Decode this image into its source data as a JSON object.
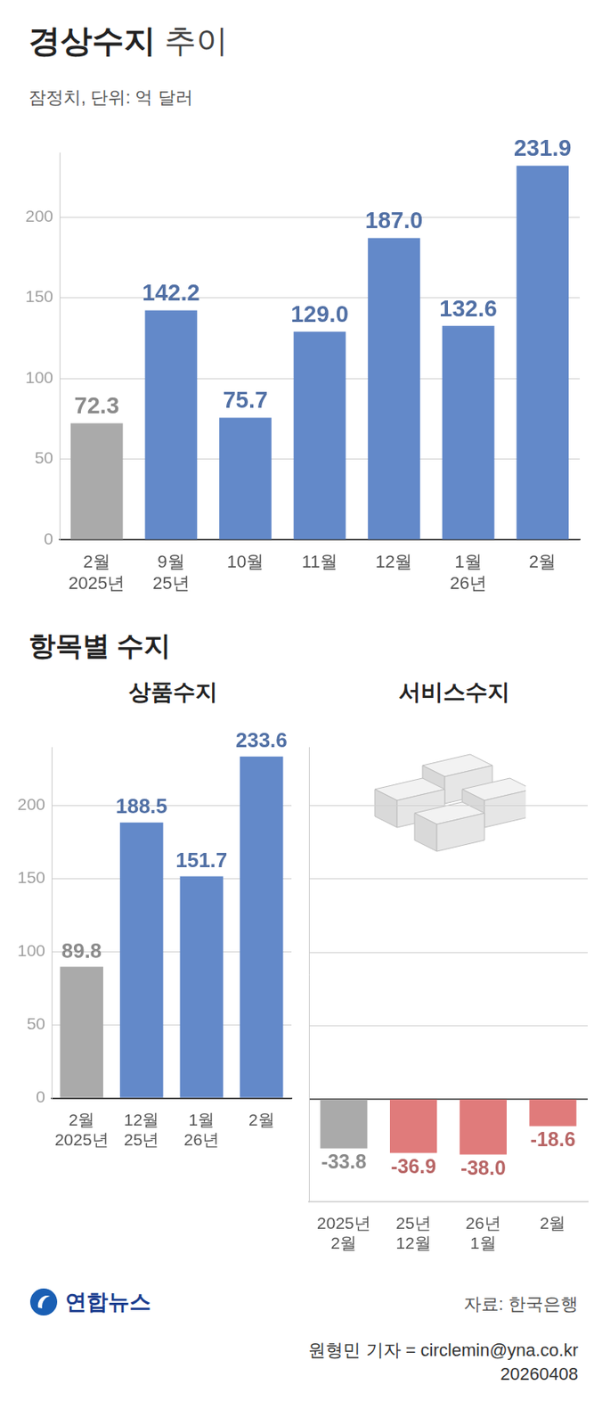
{
  "chart_data": [
    {
      "type": "bar",
      "title": "경상수지 추이",
      "subtitle": "잠정치, 단위: 억 달러",
      "categories": [
        "2월\n2025년",
        "9월\n25년",
        "10월",
        "11월",
        "12월",
        "1월\n26년",
        "2월"
      ],
      "values": [
        72.3,
        142.2,
        75.7,
        129.0,
        187.0,
        132.6,
        231.9
      ],
      "value_labels": [
        "72.3",
        "142.2",
        "75.7",
        "129.0",
        "187.0",
        "132.6",
        "231.9"
      ],
      "colors": [
        "#aaaaaa",
        "#6389c9",
        "#6389c9",
        "#6389c9",
        "#6389c9",
        "#6389c9",
        "#6389c9"
      ],
      "ylim": [
        0,
        240
      ],
      "yticks": [
        0,
        50,
        100,
        150,
        200
      ],
      "grid": true,
      "data_labels": true
    },
    {
      "type": "bar",
      "title": "상품수지",
      "categories": [
        "2월\n2025년",
        "12월\n25년",
        "1월\n26년",
        "2월"
      ],
      "values": [
        89.8,
        188.5,
        151.7,
        233.6
      ],
      "value_labels": [
        "89.8",
        "188.5",
        "151.7",
        "233.6"
      ],
      "colors": [
        "#aaaaaa",
        "#6389c9",
        "#6389c9",
        "#6389c9"
      ],
      "ylim": [
        0,
        240
      ],
      "yticks": [
        0,
        50,
        100,
        150,
        200
      ],
      "grid": true,
      "data_labels": true
    },
    {
      "type": "bar",
      "title": "서비스수지",
      "categories": [
        "2025년\n2월",
        "25년\n12월",
        "26년\n1월",
        "2월"
      ],
      "values": [
        -33.8,
        -36.9,
        -38.0,
        -18.6
      ],
      "value_labels": [
        "-33.8",
        "-36.9",
        "-38.0",
        "-18.6"
      ],
      "colors": [
        "#aaaaaa",
        "#e07b7b",
        "#e07b7b",
        "#e07b7b"
      ],
      "ylim": [
        -70,
        240
      ],
      "yticks": [
        0,
        50,
        100,
        150,
        200
      ],
      "grid": true,
      "data_labels": true,
      "tick_labels": "x"
    }
  ],
  "section_title": "항목별 수지",
  "footer": {
    "logo": "연합뉴스",
    "source": "자료: 한국은행",
    "byline": "원형민 기자 = circlemin@yna.co.kr",
    "date": "20260408"
  }
}
